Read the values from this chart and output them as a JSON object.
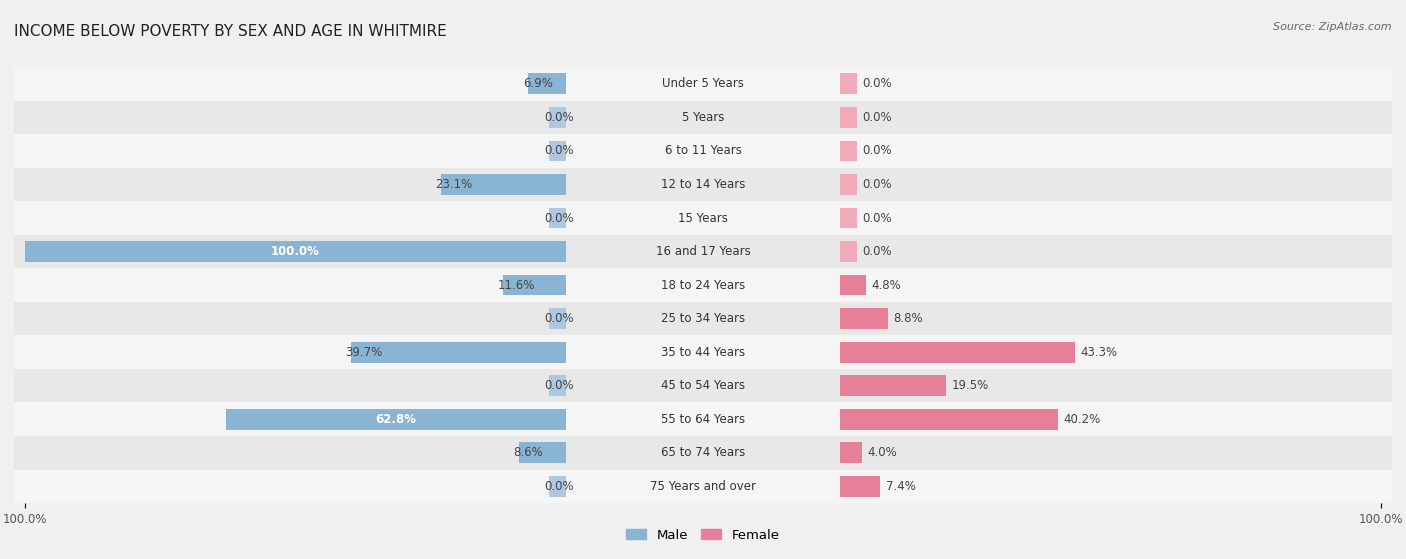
{
  "title": "INCOME BELOW POVERTY BY SEX AND AGE IN WHITMIRE",
  "source": "Source: ZipAtlas.com",
  "categories": [
    "Under 5 Years",
    "5 Years",
    "6 to 11 Years",
    "12 to 14 Years",
    "15 Years",
    "16 and 17 Years",
    "18 to 24 Years",
    "25 to 34 Years",
    "35 to 44 Years",
    "45 to 54 Years",
    "55 to 64 Years",
    "65 to 74 Years",
    "75 Years and over"
  ],
  "male_values": [
    6.9,
    0.0,
    0.0,
    23.1,
    0.0,
    100.0,
    11.6,
    0.0,
    39.7,
    0.0,
    62.8,
    8.6,
    0.0
  ],
  "female_values": [
    0.0,
    0.0,
    0.0,
    0.0,
    0.0,
    0.0,
    4.8,
    8.8,
    43.3,
    19.5,
    40.2,
    4.0,
    7.4
  ],
  "male_color": "#8ab4d4",
  "female_color": "#e87f9a",
  "male_color_light": "#adc8e0",
  "female_color_light": "#f0aabb",
  "male_label": "Male",
  "female_label": "Female",
  "bg_light": "#f0f0f0",
  "row_odd": "#e8e8e8",
  "row_even": "#f5f5f5",
  "max_value": 100.0,
  "min_bar_display": 3.0,
  "title_fontsize": 11,
  "label_fontsize": 8.5,
  "value_fontsize": 8.5,
  "tick_fontsize": 8.5,
  "legend_fontsize": 9.5
}
